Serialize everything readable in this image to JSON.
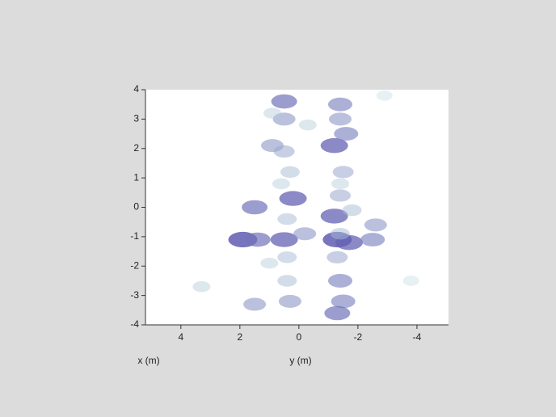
{
  "chart_data": {
    "type": "heatmap",
    "xlabel": "y (m)",
    "xlabel2": "x (m)",
    "xlim": [
      5.2,
      -5.07
    ],
    "ylim": [
      -4,
      4
    ],
    "xticks": [
      4,
      2,
      0,
      -2,
      -4
    ],
    "yticks": [
      -4,
      -3,
      -2,
      -1,
      0,
      1,
      2,
      3,
      4
    ],
    "colors": [
      "#cfeee6",
      "#4a3fa8"
    ],
    "blobs": {
      "x": [
        0.5,
        0.5,
        -1.4,
        -1.4,
        0.9,
        -1.2,
        -1.6,
        0.3,
        0.5,
        -1.5,
        1.5,
        0.2,
        -1.2,
        -1.4,
        -2.6,
        1.9,
        1.4,
        0.5,
        -0.2,
        -1.3,
        -1.7,
        -2.5,
        0.4,
        -1.3,
        1.5,
        0.3,
        -1.5,
        -1.4,
        0.4,
        -1.3,
        0.6,
        -1.4,
        -0.3,
        3.3,
        1.0,
        -1.8,
        0.4,
        -1.4,
        -3.8,
        -2.9,
        0.9
      ],
      "y": [
        3.6,
        3.0,
        3.5,
        3.0,
        2.1,
        2.1,
        2.5,
        1.2,
        1.9,
        1.2,
        0.0,
        0.3,
        -0.3,
        0.4,
        -0.6,
        -1.1,
        -1.1,
        -1.1,
        -0.9,
        -1.1,
        -1.2,
        -1.1,
        -1.7,
        -1.7,
        -3.3,
        -3.2,
        -3.2,
        -2.5,
        -2.5,
        -3.6,
        0.8,
        0.8,
        2.8,
        -2.7,
        -1.9,
        -0.1,
        -0.4,
        -0.9,
        -2.5,
        3.8,
        3.2
      ],
      "values": [
        0.7,
        0.5,
        0.6,
        0.5,
        0.5,
        0.8,
        0.6,
        0.3,
        0.4,
        0.4,
        0.7,
        0.8,
        0.8,
        0.4,
        0.5,
        0.9,
        0.7,
        0.8,
        0.5,
        0.9,
        0.8,
        0.6,
        0.3,
        0.4,
        0.5,
        0.5,
        0.6,
        0.6,
        0.3,
        0.7,
        0.2,
        0.2,
        0.2,
        0.2,
        0.2,
        0.3,
        0.3,
        0.3,
        0.1,
        0.1,
        0.2
      ]
    }
  }
}
